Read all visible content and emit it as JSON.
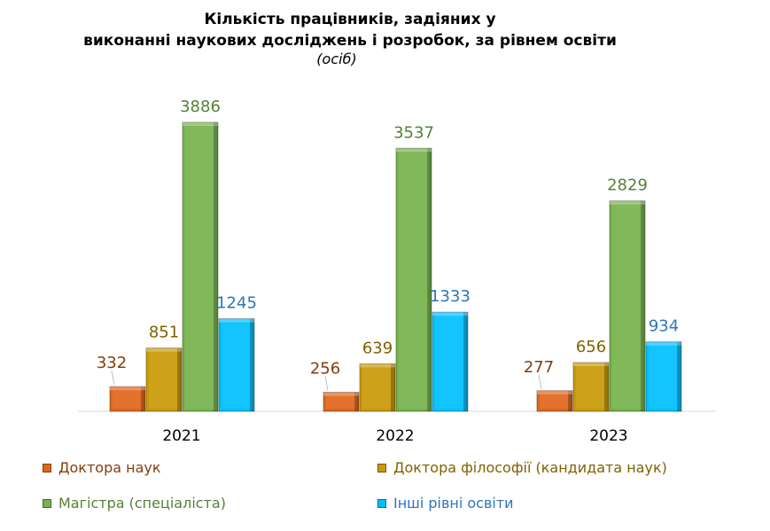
{
  "chart_data": {
    "type": "bar",
    "title_line1": "Кількість працівників, задіяних у",
    "title_line2": "виконанні наукових досліджень і розробок, за рівнем освіти",
    "subtitle": "(осіб)",
    "categories": [
      "2021",
      "2022",
      "2023"
    ],
    "series": [
      {
        "name": "Доктора наук",
        "values": [
          332,
          256,
          277
        ],
        "color": "#E0661B",
        "label_color": "#843C0C"
      },
      {
        "name": "Доктора філософії (кандидата наук)",
        "values": [
          851,
          639,
          656
        ],
        "color": "#C99A06",
        "label_color": "#806000"
      },
      {
        "name": "Магістра (спеціаліста)",
        "values": [
          3886,
          3537,
          2829
        ],
        "color": "#77B24C",
        "label_color": "#548235"
      },
      {
        "name": "Інші рівні освіти",
        "values": [
          1245,
          1333,
          934
        ],
        "color": "#00BFFF",
        "label_color": "#2E75B6"
      }
    ],
    "ylim": [
      0,
      3886
    ],
    "grid": false,
    "legend": "bottom"
  }
}
